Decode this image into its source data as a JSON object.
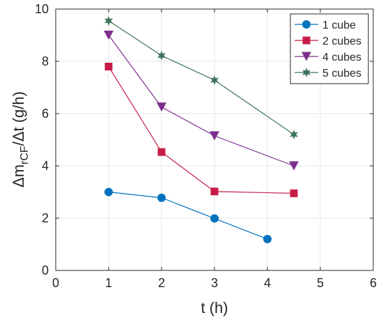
{
  "chart_data": {
    "type": "line",
    "title": "",
    "xlabel": "t (h)",
    "ylabel": {
      "prefix": "Δm",
      "subscript": "rCF",
      "suffix": "/Δt (g/h)"
    },
    "xlim": [
      0,
      6
    ],
    "ylim": [
      0,
      10
    ],
    "xticks": [
      0,
      1,
      2,
      3,
      4,
      5,
      6
    ],
    "yticks": [
      0,
      2,
      4,
      6,
      8,
      10
    ],
    "grid": true,
    "legend_position": "top-right",
    "series": [
      {
        "name": "1 cube",
        "color": "#0072BD",
        "marker": "circle",
        "x": [
          1,
          2,
          3,
          4
        ],
        "y": [
          3.0,
          2.78,
          1.99,
          1.2
        ]
      },
      {
        "name": "2 cubes",
        "color": "#C71C46",
        "marker": "square",
        "x": [
          1,
          2,
          3,
          4.5
        ],
        "y": [
          7.8,
          4.53,
          3.02,
          2.95
        ]
      },
      {
        "name": "4 cubes",
        "color": "#7E2F8E",
        "marker": "triangle-down",
        "x": [
          1,
          2,
          3,
          4.5
        ],
        "y": [
          9.0,
          6.25,
          5.15,
          4.0
        ]
      },
      {
        "name": "5 cubes",
        "color": "#3A7359",
        "marker": "hexagram",
        "x": [
          1,
          2,
          3,
          4.5
        ],
        "y": [
          9.55,
          8.22,
          7.28,
          5.2
        ]
      }
    ]
  }
}
